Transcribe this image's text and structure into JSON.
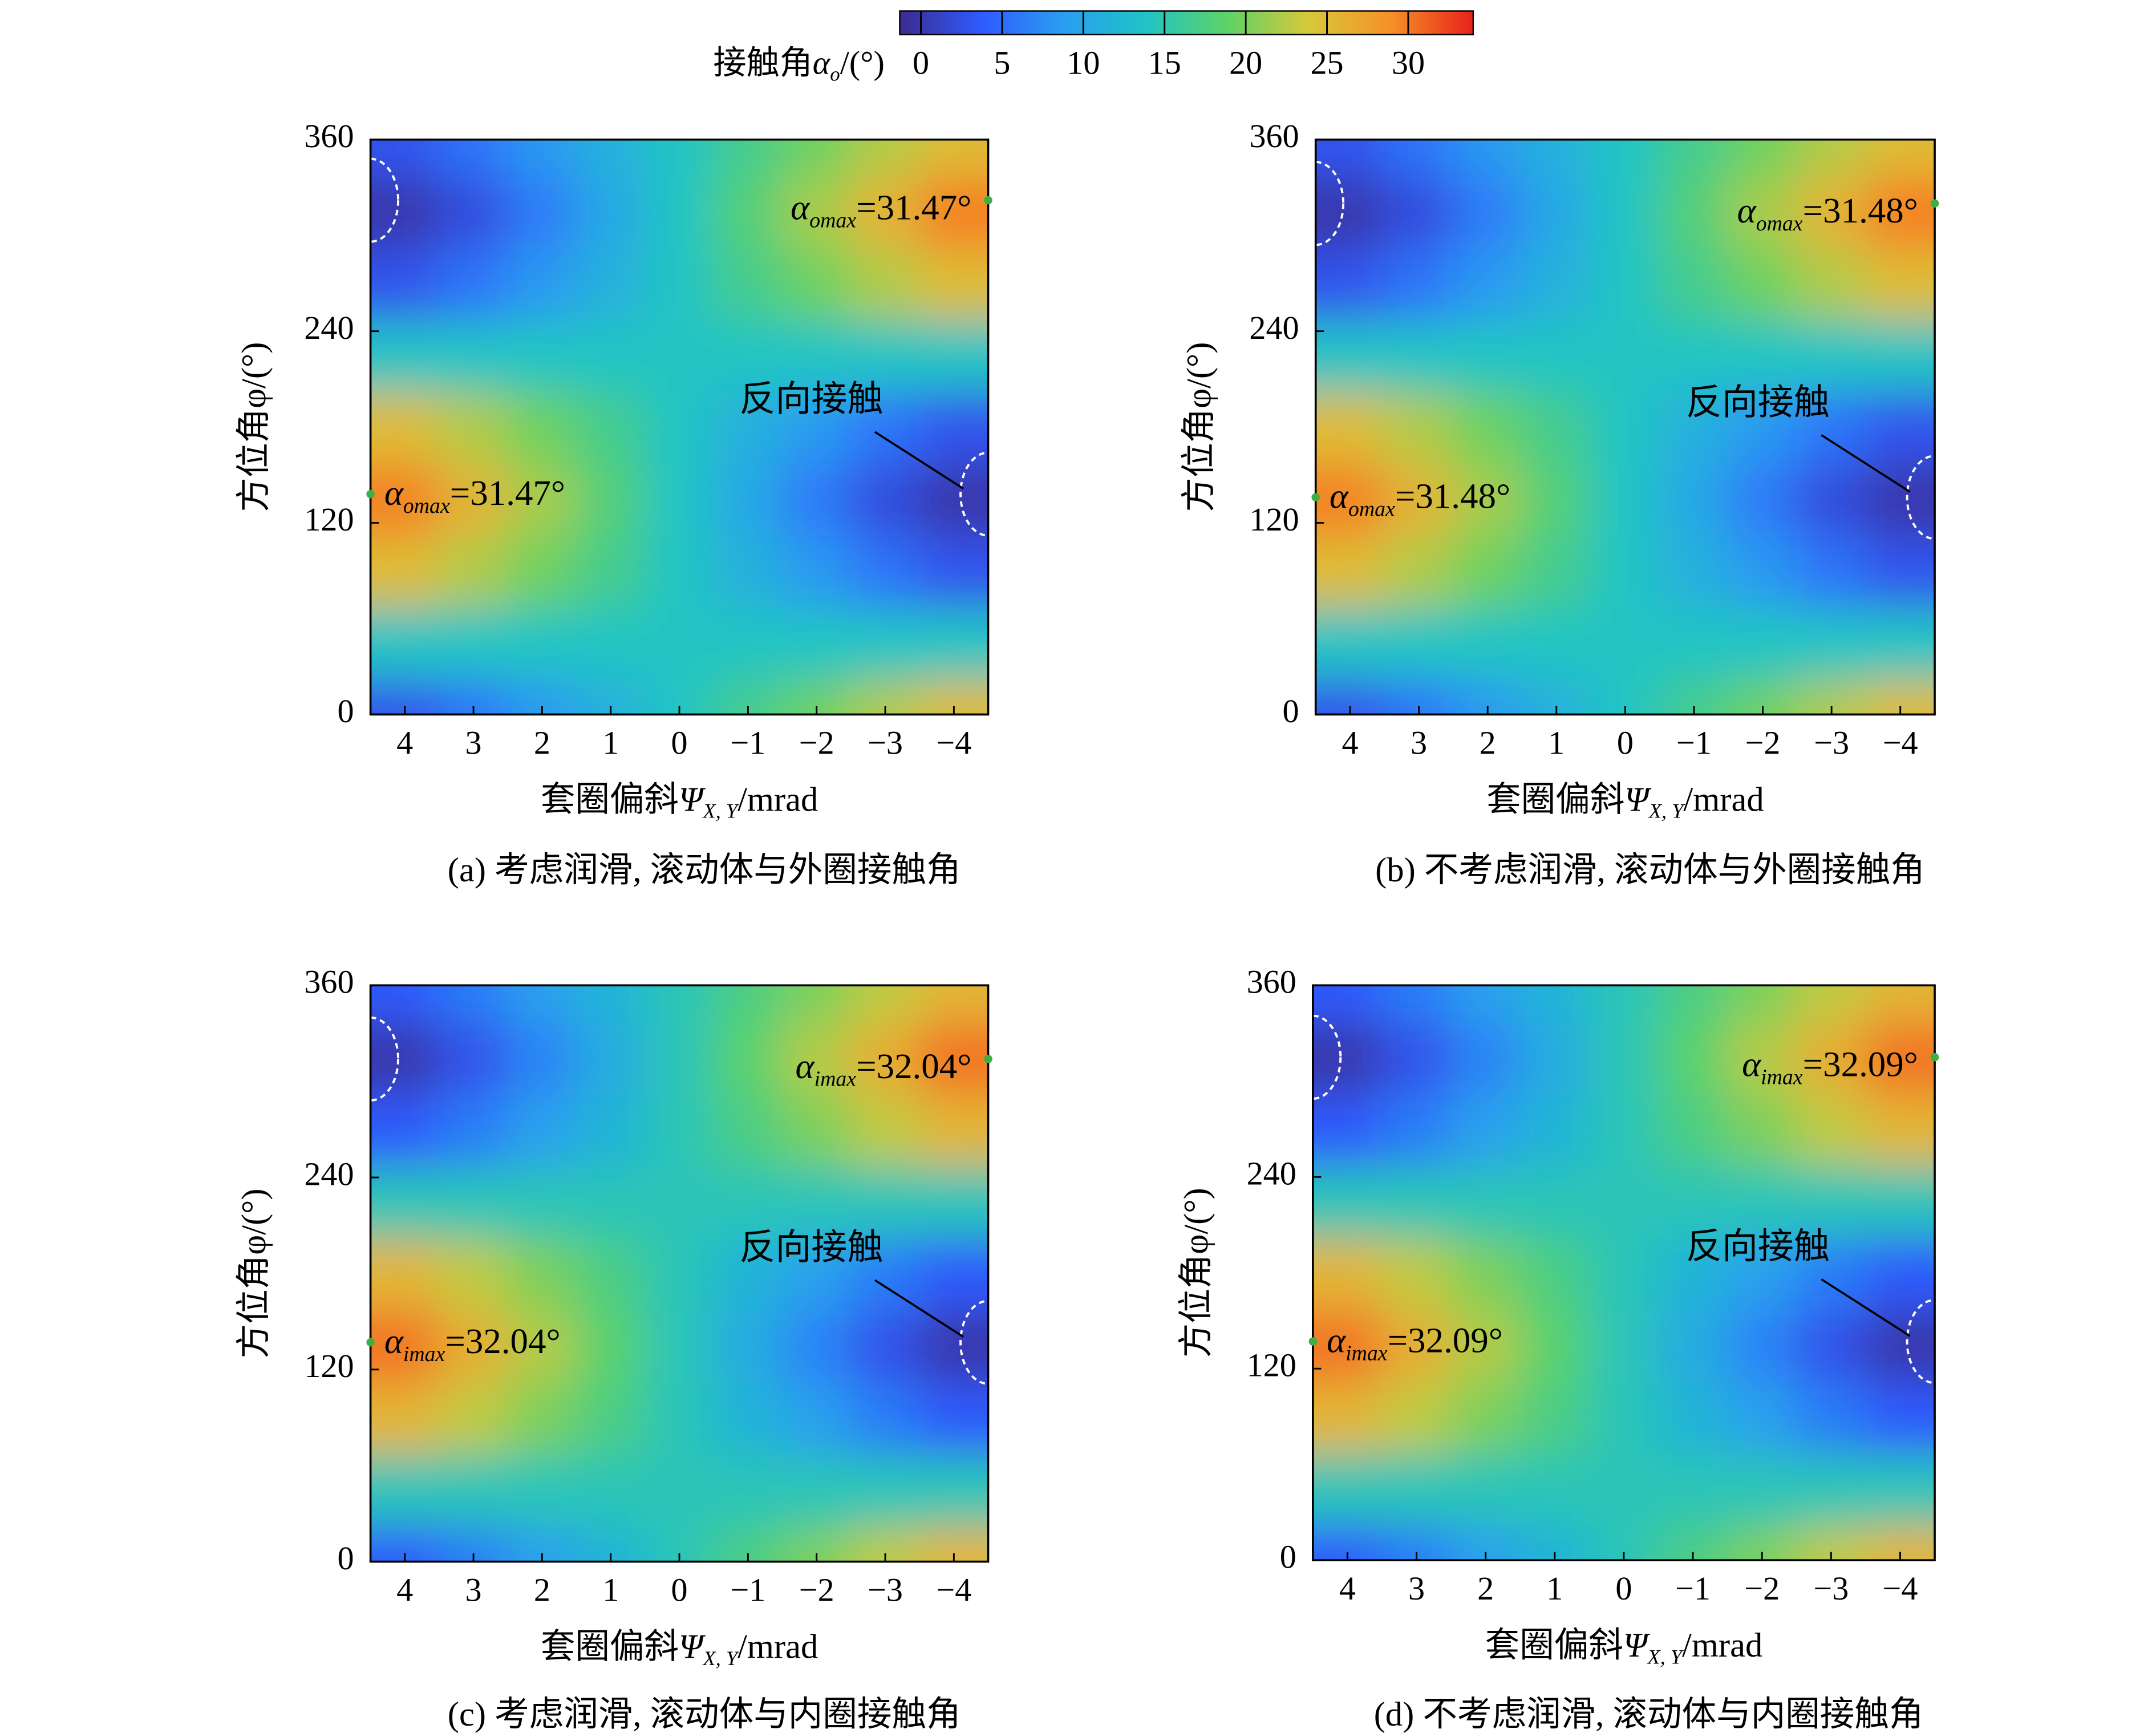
{
  "colorbar": {
    "label": {
      "main": "接触角",
      "symbol": "α",
      "sub": "o",
      "tail": "/(°)"
    },
    "lim": [
      -1.3,
      34
    ],
    "ticks": [
      0,
      5,
      10,
      15,
      20,
      25,
      30
    ],
    "colormap": [
      "#3d2b8e",
      "#2f5bff",
      "#2a9ef0",
      "#20c3c6",
      "#5ed266",
      "#d8c83a",
      "#f69028",
      "#e8221a"
    ]
  },
  "chart_data": [
    {
      "type": "heatmap",
      "caption": "(a) 考虑润滑, 滚动体与外圈接触角",
      "xlabel": {
        "main": "套圈偏斜",
        "symbol": "Ψ",
        "sub": "X, Y",
        "tail": "/mrad"
      },
      "ylabel": "方位角φ/(°)",
      "x": [
        4,
        3,
        2,
        1,
        0,
        -1,
        -2,
        -3,
        -4
      ],
      "y": [
        0,
        45,
        90,
        135,
        180,
        225,
        270,
        315,
        360
      ],
      "values": [
        [
          3.0,
          5.7,
          8.5,
          11.2,
          14,
          16.8,
          19.5,
          22.3,
          25.0
        ],
        [
          14,
          14,
          14,
          14,
          14,
          14,
          14,
          14,
          14
        ],
        [
          25.0,
          22.3,
          19.5,
          16.8,
          14,
          11.2,
          8.5,
          5.7,
          3.0
        ],
        [
          29.6,
          25.7,
          21.8,
          17.9,
          14,
          10.1,
          6.2,
          2.3,
          0
        ],
        [
          25.0,
          22.3,
          19.5,
          16.8,
          14,
          11.2,
          8.5,
          5.7,
          3.0
        ],
        [
          14,
          14,
          14,
          14,
          14,
          14,
          14,
          14,
          14
        ],
        [
          3.0,
          5.7,
          8.5,
          11.2,
          14,
          16.8,
          19.5,
          22.3,
          25.0
        ],
        [
          0,
          2.3,
          6.2,
          10.1,
          14,
          17.9,
          21.8,
          25.7,
          29.6
        ],
        [
          3.0,
          5.7,
          8.5,
          11.2,
          14,
          16.8,
          19.5,
          22.3,
          25.0
        ]
      ],
      "xlim": [
        4.5,
        -4.5
      ],
      "ylim": [
        0,
        360
      ],
      "xticks": [
        4,
        3,
        2,
        1,
        0,
        {
          "value": -1,
          "label": "−1"
        },
        {
          "value": -2,
          "label": "−2"
        },
        {
          "value": -3,
          "label": "−3"
        },
        {
          "value": -4,
          "label": "−4"
        }
      ],
      "yticks": [
        0,
        120,
        240,
        360
      ],
      "marker_color": "#3cb043",
      "markers": [
        {
          "x": 4.5,
          "y": 138,
          "label": {
            "symbol": "α",
            "sub": "omax",
            "text": "=31.47°"
          }
        },
        {
          "x": -4.5,
          "y": 322,
          "label": {
            "symbol": "α",
            "sub": "omax",
            "text": "=31.47°"
          }
        }
      ],
      "annotation": "反向接触"
    },
    {
      "type": "heatmap",
      "caption": "(b) 不考虑润滑, 滚动体与外圈接触角",
      "xlabel": {
        "main": "套圈偏斜",
        "symbol": "Ψ",
        "sub": "X, Y",
        "tail": "/mrad"
      },
      "ylabel": "方位角φ/(°)",
      "x": [
        4,
        3,
        2,
        1,
        0,
        -1,
        -2,
        -3,
        -4
      ],
      "y": [
        0,
        45,
        90,
        135,
        180,
        225,
        270,
        315,
        360
      ],
      "values": [
        [
          3.0,
          5.7,
          8.5,
          11.2,
          14,
          16.8,
          19.5,
          22.3,
          25.0
        ],
        [
          14,
          14,
          14,
          14,
          14,
          14,
          14,
          14,
          14
        ],
        [
          25.0,
          22.3,
          19.5,
          16.8,
          14,
          11.2,
          8.5,
          5.7,
          3.0
        ],
        [
          29.6,
          25.7,
          21.8,
          17.9,
          14,
          10.1,
          6.2,
          2.3,
          0
        ],
        [
          25.0,
          22.3,
          19.5,
          16.8,
          14,
          11.2,
          8.5,
          5.7,
          3.0
        ],
        [
          14,
          14,
          14,
          14,
          14,
          14,
          14,
          14,
          14
        ],
        [
          3.0,
          5.7,
          8.5,
          11.2,
          14,
          16.8,
          19.5,
          22.3,
          25.0
        ],
        [
          0,
          2.3,
          6.2,
          10.1,
          14,
          17.9,
          21.8,
          25.7,
          29.6
        ],
        [
          3.0,
          5.7,
          8.5,
          11.2,
          14,
          16.8,
          19.5,
          22.3,
          25.0
        ]
      ],
      "xlim": [
        4.5,
        -4.5
      ],
      "ylim": [
        0,
        360
      ],
      "xticks": [
        4,
        3,
        2,
        1,
        0,
        {
          "value": -1,
          "label": "−1"
        },
        {
          "value": -2,
          "label": "−2"
        },
        {
          "value": -3,
          "label": "−3"
        },
        {
          "value": -4,
          "label": "−4"
        }
      ],
      "yticks": [
        0,
        120,
        240,
        360
      ],
      "marker_color": "#3cb043",
      "markers": [
        {
          "x": 4.5,
          "y": 136,
          "label": {
            "symbol": "α",
            "sub": "omax",
            "text": "=31.48°"
          }
        },
        {
          "x": -4.5,
          "y": 320,
          "label": {
            "symbol": "α",
            "sub": "omax",
            "text": "=31.48°"
          }
        }
      ],
      "annotation": "反向接触"
    },
    {
      "type": "heatmap",
      "caption": "(c) 考虑润滑, 滚动体与内圈接触角",
      "xlabel": {
        "main": "套圈偏斜",
        "symbol": "Ψ",
        "sub": "X, Y",
        "tail": "/mrad"
      },
      "ylabel": "方位角φ/(°)",
      "x": [
        4,
        3,
        2,
        1,
        0,
        -1,
        -2,
        -3,
        -4
      ],
      "y": [
        0,
        45,
        90,
        135,
        180,
        225,
        270,
        315,
        360
      ],
      "values": [
        [
          3.6,
          6.3,
          9.1,
          11.8,
          14.6,
          17.4,
          20.1,
          22.9,
          25.6
        ],
        [
          14.6,
          14.6,
          14.6,
          14.6,
          14.6,
          14.6,
          14.6,
          14.6,
          14.6
        ],
        [
          25.6,
          22.9,
          20.1,
          17.4,
          14.6,
          11.8,
          9.1,
          6.3,
          3.6
        ],
        [
          30.2,
          26.3,
          22.4,
          18.5,
          14.6,
          10.7,
          6.8,
          2.9,
          0
        ],
        [
          25.6,
          22.9,
          20.1,
          17.4,
          14.6,
          11.8,
          9.1,
          6.3,
          3.6
        ],
        [
          14.6,
          14.6,
          14.6,
          14.6,
          14.6,
          14.6,
          14.6,
          14.6,
          14.6
        ],
        [
          3.6,
          6.3,
          9.1,
          11.8,
          14.6,
          17.4,
          20.1,
          22.9,
          25.6
        ],
        [
          0,
          2.9,
          6.8,
          10.7,
          14.6,
          18.5,
          22.4,
          26.3,
          30.2
        ],
        [
          3.6,
          6.3,
          9.1,
          11.8,
          14.6,
          17.4,
          20.1,
          22.9,
          25.6
        ]
      ],
      "xlim": [
        4.5,
        -4.5
      ],
      "ylim": [
        0,
        360
      ],
      "xticks": [
        4,
        3,
        2,
        1,
        0,
        {
          "value": -1,
          "label": "−1"
        },
        {
          "value": -2,
          "label": "−2"
        },
        {
          "value": -3,
          "label": "−3"
        },
        {
          "value": -4,
          "label": "−4"
        }
      ],
      "yticks": [
        0,
        120,
        240,
        360
      ],
      "marker_color": "#3cb043",
      "markers": [
        {
          "x": 4.5,
          "y": 137,
          "label": {
            "symbol": "α",
            "sub": "imax",
            "text": "=32.04°"
          }
        },
        {
          "x": -4.5,
          "y": 314,
          "label": {
            "symbol": "α",
            "sub": "imax",
            "text": "=32.04°"
          }
        }
      ],
      "annotation": "反向接触"
    },
    {
      "type": "heatmap",
      "caption": "(d) 不考虑润滑, 滚动体与内圈接触角",
      "xlabel": {
        "main": "套圈偏斜",
        "symbol": "Ψ",
        "sub": "X, Y",
        "tail": "/mrad"
      },
      "ylabel": "方位角φ/(°)",
      "x": [
        4,
        3,
        2,
        1,
        0,
        -1,
        -2,
        -3,
        -4
      ],
      "y": [
        0,
        45,
        90,
        135,
        180,
        225,
        270,
        315,
        360
      ],
      "values": [
        [
          3.6,
          6.3,
          9.1,
          11.8,
          14.6,
          17.4,
          20.1,
          22.9,
          25.6
        ],
        [
          14.6,
          14.6,
          14.6,
          14.6,
          14.6,
          14.6,
          14.6,
          14.6,
          14.6
        ],
        [
          25.6,
          22.9,
          20.1,
          17.4,
          14.6,
          11.8,
          9.1,
          6.3,
          3.6
        ],
        [
          30.2,
          26.3,
          22.4,
          18.5,
          14.6,
          10.7,
          6.8,
          2.9,
          0
        ],
        [
          25.6,
          22.9,
          20.1,
          17.4,
          14.6,
          11.8,
          9.1,
          6.3,
          3.6
        ],
        [
          14.6,
          14.6,
          14.6,
          14.6,
          14.6,
          14.6,
          14.6,
          14.6,
          14.6
        ],
        [
          3.6,
          6.3,
          9.1,
          11.8,
          14.6,
          17.4,
          20.1,
          22.9,
          25.6
        ],
        [
          0,
          2.9,
          6.8,
          10.7,
          14.6,
          18.5,
          22.4,
          26.3,
          30.2
        ],
        [
          3.6,
          6.3,
          9.1,
          11.8,
          14.6,
          17.4,
          20.1,
          22.9,
          25.6
        ]
      ],
      "xlim": [
        4.5,
        -4.5
      ],
      "ylim": [
        0,
        360
      ],
      "xticks": [
        4,
        3,
        2,
        1,
        0,
        {
          "value": -1,
          "label": "−1"
        },
        {
          "value": -2,
          "label": "−2"
        },
        {
          "value": -3,
          "label": "−3"
        },
        {
          "value": -4,
          "label": "−4"
        }
      ],
      "yticks": [
        0,
        120,
        240,
        360
      ],
      "marker_color": "#3cb043",
      "markers": [
        {
          "x": 4.5,
          "y": 137,
          "label": {
            "symbol": "α",
            "sub": "imax",
            "text": "=32.09°"
          }
        },
        {
          "x": -4.5,
          "y": 315,
          "label": {
            "symbol": "α",
            "sub": "imax",
            "text": "=32.09°"
          }
        }
      ],
      "annotation": "反向接触"
    }
  ]
}
